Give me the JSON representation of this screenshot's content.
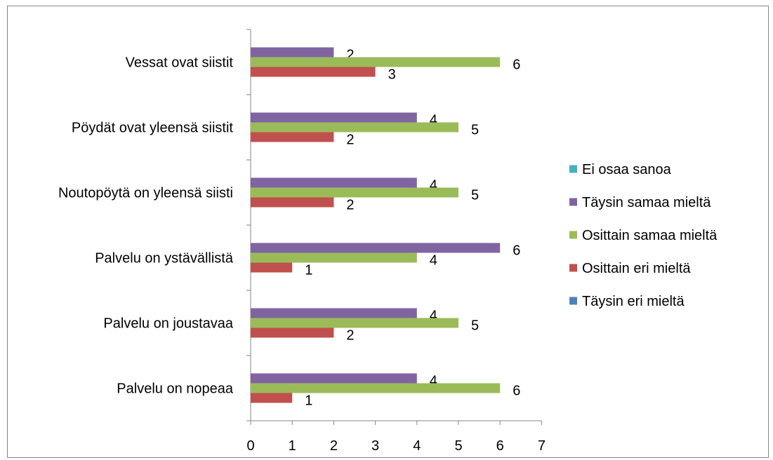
{
  "chart_data": {
    "type": "bar",
    "orientation": "horizontal",
    "categories": [
      "Palvelu on nopeaa",
      "Palvelu on joustavaa",
      "Palvelu on ystävällistä",
      "Noutopöytä on yleensä siisti",
      "Pöydät ovat yleensä siistit",
      "Vessat ovat siistit"
    ],
    "series": [
      {
        "name": "Täysin eri mieltä",
        "color": "#4f81bd",
        "values": [
          0,
          0,
          0,
          0,
          0,
          0
        ]
      },
      {
        "name": "Osittain eri mieltä",
        "color": "#c0504d",
        "values": [
          1,
          2,
          1,
          2,
          2,
          3
        ]
      },
      {
        "name": "Osittain samaa mieltä",
        "color": "#9bbb59",
        "values": [
          6,
          5,
          4,
          5,
          5,
          6
        ]
      },
      {
        "name": "Täysin samaa mieltä",
        "color": "#8064a2",
        "values": [
          4,
          4,
          6,
          4,
          4,
          2
        ]
      },
      {
        "name": "Ei osaa sanoa",
        "color": "#4bacc6",
        "values": [
          0,
          0,
          0,
          0,
          0,
          0
        ]
      }
    ],
    "xlim": [
      0,
      7
    ],
    "xticks": [
      0,
      1,
      2,
      3,
      4,
      5,
      6,
      7
    ],
    "grid": false,
    "legend_position": "right"
  }
}
